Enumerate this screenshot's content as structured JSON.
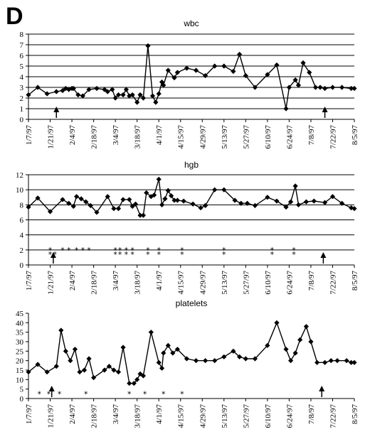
{
  "panel_label": "D",
  "chart_data": [
    {
      "type": "line",
      "title": "wbc",
      "ylim": [
        0,
        8
      ],
      "yticks": [
        0,
        1,
        2,
        3,
        4,
        5,
        6,
        7,
        8
      ],
      "xticks": [
        "1/7/97",
        "1/21/97",
        "2/4/97",
        "2/18/97",
        "3/4/97",
        "3/18/97",
        "4/1/97",
        "4/15/97",
        "4/29/97",
        "5/13/97",
        "5/27/97",
        "6/10/97",
        "6/24/97",
        "7/8/97",
        "7/22/97",
        "8/5/97"
      ],
      "grid": true,
      "x": [
        "1/7/97",
        "1/13/97",
        "1/19/97",
        "1/25/97",
        "1/29/97",
        "1/31/97",
        "2/2/97",
        "2/4/97",
        "2/5/97",
        "2/8/97",
        "2/11/97",
        "2/15/97",
        "2/20/97",
        "2/25/97",
        "2/27/97",
        "3/2/97",
        "3/4/97",
        "3/6/97",
        "3/9/97",
        "3/11/97",
        "3/13/97",
        "3/15/97",
        "3/18/97",
        "3/20/97",
        "3/22/97",
        "3/25/97",
        "3/28/97",
        "3/30/97",
        "4/1/97",
        "4/3/97",
        "4/4/97",
        "4/7/97",
        "4/11/97",
        "4/13/97",
        "4/19/97",
        "4/25/97",
        "5/1/97",
        "5/7/97",
        "5/13/97",
        "5/19/97",
        "5/23/97",
        "5/27/97",
        "6/2/97",
        "6/10/97",
        "6/16/97",
        "6/22/97",
        "6/24/97",
        "6/28/97",
        "6/30/97",
        "7/3/97",
        "7/7/97",
        "7/11/97",
        "7/14/97",
        "7/17/97",
        "7/22/97",
        "7/28/97",
        "8/3/97",
        "8/5/97"
      ],
      "series": [
        {
          "values": [
            2.3,
            3.0,
            2.4,
            2.6,
            2.7,
            2.9,
            2.8,
            2.9,
            2.9,
            2.3,
            2.2,
            2.8,
            2.9,
            2.8,
            2.6,
            2.8,
            2.0,
            2.3,
            2.3,
            2.8,
            2.2,
            2.3,
            1.6,
            2.3,
            2.0,
            6.9,
            2.2,
            1.6,
            2.4,
            3.5,
            3.2,
            4.6,
            3.9,
            4.4,
            4.8,
            4.6,
            4.1,
            5.0,
            5.0,
            4.5,
            6.1,
            4.1,
            3.0,
            4.2,
            5.1,
            1.0,
            3.0,
            3.7,
            3.2,
            5.3,
            4.4,
            3.0,
            3.0,
            2.9,
            3.0,
            3.0,
            2.9,
            2.9
          ],
          "marker": "diamond"
        }
      ],
      "arrows": [
        "1/25/97",
        "7/17/97"
      ],
      "stars": []
    },
    {
      "type": "line",
      "title": "hgb",
      "ylim": [
        0,
        12
      ],
      "yticks": [
        0,
        2,
        4,
        6,
        8,
        10,
        12
      ],
      "xticks": [
        "1/7/97",
        "1/21/97",
        "2/4/97",
        "2/18/97",
        "3/4/97",
        "3/18/97",
        "4/1/97",
        "4/15/97",
        "4/29/97",
        "5/13/97",
        "5/27/97",
        "6/10/97",
        "6/24/97",
        "7/8/97",
        "7/22/97",
        "8/5/97"
      ],
      "grid": true,
      "x": [
        "1/7/97",
        "1/13/97",
        "1/21/97",
        "1/29/97",
        "2/2/97",
        "2/5/97",
        "2/7/97",
        "2/10/97",
        "2/13/97",
        "2/16/97",
        "2/20/97",
        "2/27/97",
        "3/3/97",
        "3/6/97",
        "3/9/97",
        "3/13/97",
        "3/15/97",
        "3/17/97",
        "3/20/97",
        "3/22/97",
        "3/24/97",
        "3/27/97",
        "3/29/97",
        "4/1/97",
        "4/3/97",
        "4/5/97",
        "4/7/97",
        "4/9/97",
        "4/11/97",
        "4/13/97",
        "4/17/97",
        "4/23/97",
        "4/28/97",
        "5/1/97",
        "5/7/97",
        "5/13/97",
        "5/20/97",
        "5/24/97",
        "5/28/97",
        "6/2/97",
        "6/10/97",
        "6/16/97",
        "6/22/97",
        "6/25/97",
        "6/28/97",
        "6/30/97",
        "7/5/97",
        "7/10/97",
        "7/17/97",
        "7/22/97",
        "7/28/97",
        "8/3/97",
        "8/5/97"
      ],
      "series": [
        {
          "values": [
            7.7,
            8.9,
            7.1,
            8.7,
            8.2,
            7.8,
            9.1,
            8.8,
            8.4,
            7.9,
            7.0,
            9.1,
            7.5,
            7.5,
            8.7,
            8.7,
            7.8,
            8.1,
            6.6,
            6.6,
            9.6,
            9.1,
            9.3,
            11.4,
            8.0,
            8.8,
            9.9,
            9.2,
            8.6,
            8.6,
            8.5,
            8.1,
            7.6,
            7.9,
            10.0,
            10.0,
            8.6,
            8.2,
            8.2,
            7.9,
            9.0,
            8.5,
            7.7,
            8.4,
            10.5,
            8.0,
            8.4,
            8.5,
            8.3,
            9.1,
            8.2,
            7.6,
            7.5
          ],
          "marker": "diamond"
        }
      ],
      "arrows": [
        "1/23/97",
        "7/16/97"
      ],
      "stars": [
        {
          "x": "1/21/97",
          "y": 2.0
        },
        {
          "x": "1/21/97",
          "y": 1.4
        },
        {
          "x": "1/24/97",
          "y": 1.4
        },
        {
          "x": "1/29/97",
          "y": 2.0
        },
        {
          "x": "2/2/97",
          "y": 2.0
        },
        {
          "x": "2/7/97",
          "y": 2.0
        },
        {
          "x": "2/11/97",
          "y": 2.0
        },
        {
          "x": "2/15/97",
          "y": 2.0
        },
        {
          "x": "3/4/97",
          "y": 2.0
        },
        {
          "x": "3/4/97",
          "y": 1.4
        },
        {
          "x": "3/7/97",
          "y": 2.0
        },
        {
          "x": "3/7/97",
          "y": 1.4
        },
        {
          "x": "3/11/97",
          "y": 2.0
        },
        {
          "x": "3/11/97",
          "y": 1.4
        },
        {
          "x": "3/15/97",
          "y": 2.0
        },
        {
          "x": "3/15/97",
          "y": 1.4
        },
        {
          "x": "3/25/97",
          "y": 2.0
        },
        {
          "x": "3/25/97",
          "y": 1.4
        },
        {
          "x": "4/1/97",
          "y": 2.0
        },
        {
          "x": "4/1/97",
          "y": 1.4
        },
        {
          "x": "4/16/97",
          "y": 2.0
        },
        {
          "x": "4/16/97",
          "y": 1.4
        },
        {
          "x": "5/13/97",
          "y": 2.0
        },
        {
          "x": "5/13/97",
          "y": 1.4
        },
        {
          "x": "6/13/97",
          "y": 2.0
        },
        {
          "x": "6/13/97",
          "y": 1.4
        },
        {
          "x": "6/27/97",
          "y": 2.0
        },
        {
          "x": "6/27/97",
          "y": 1.4
        }
      ]
    },
    {
      "type": "line",
      "title": "platelets",
      "ylim": [
        0,
        45
      ],
      "yticks": [
        0,
        5,
        10,
        15,
        20,
        25,
        30,
        35,
        40,
        45
      ],
      "xticks": [
        "1/7/97",
        "1/21/97",
        "2/4/97",
        "2/18/97",
        "3/4/97",
        "3/18/97",
        "4/1/97",
        "4/15/97",
        "4/29/97",
        "5/13/97",
        "5/27/97",
        "6/10/97",
        "6/24/97",
        "7/8/97",
        "7/22/97",
        "8/5/97"
      ],
      "grid": false,
      "x": [
        "1/7/97",
        "1/13/97",
        "1/19/97",
        "1/25/97",
        "1/28/97",
        "1/31/97",
        "2/3/97",
        "2/6/97",
        "2/9/97",
        "2/12/97",
        "2/15/97",
        "2/18/97",
        "2/25/97",
        "2/28/97",
        "3/3/97",
        "3/6/97",
        "3/9/97",
        "3/13/97",
        "3/16/97",
        "3/18/97",
        "3/20/97",
        "3/22/97",
        "3/27/97",
        "4/1/97",
        "4/3/97",
        "4/4/97",
        "4/7/97",
        "4/10/97",
        "4/13/97",
        "4/19/97",
        "4/25/97",
        "5/1/97",
        "5/7/97",
        "5/13/97",
        "5/19/97",
        "5/23/97",
        "5/27/97",
        "6/2/97",
        "6/10/97",
        "6/16/97",
        "6/22/97",
        "6/25/97",
        "6/28/97",
        "7/1/97",
        "7/5/97",
        "7/8/97",
        "7/12/97",
        "7/17/97",
        "7/21/97",
        "7/25/97",
        "7/31/97",
        "8/3/97",
        "8/5/97"
      ],
      "series": [
        {
          "values": [
            14,
            18,
            14,
            17,
            36,
            25,
            20,
            26,
            14,
            15,
            21,
            11,
            15,
            17,
            15,
            14,
            27,
            8,
            8,
            10,
            13,
            12,
            35,
            19,
            16,
            24,
            28,
            24,
            26,
            21,
            20,
            20,
            20,
            22,
            25,
            22,
            21,
            21,
            28,
            40,
            26,
            20,
            24,
            31,
            38,
            30,
            19,
            19,
            20,
            20,
            20,
            19,
            19
          ],
          "marker": "diamond"
        }
      ],
      "arrows": [
        "1/22/97",
        "7/15/97"
      ],
      "stars": [
        {
          "x": "1/14/97",
          "y": 2.5
        },
        {
          "x": "1/20/97",
          "y": 2.5
        },
        {
          "x": "1/27/97",
          "y": 2.5
        },
        {
          "x": "2/13/97",
          "y": 2.5
        },
        {
          "x": "3/13/97",
          "y": 2.5
        },
        {
          "x": "3/23/97",
          "y": 2.5
        },
        {
          "x": "4/4/97",
          "y": 2.5
        },
        {
          "x": "4/16/97",
          "y": 2.5
        }
      ]
    }
  ]
}
